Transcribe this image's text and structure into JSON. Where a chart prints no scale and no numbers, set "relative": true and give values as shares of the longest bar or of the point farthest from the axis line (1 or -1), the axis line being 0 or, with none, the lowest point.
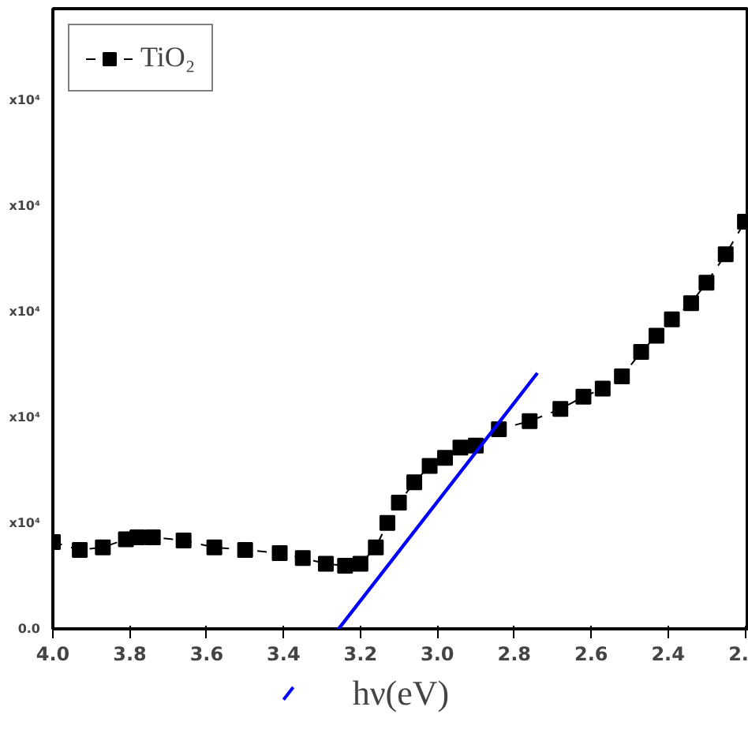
{
  "chart_data": {
    "type": "line",
    "relative": true,
    "xlabel": "hν(eV)",
    "xlim": [
      4.0,
      2.19
    ],
    "xticks": [
      {
        "value": 4.0,
        "label": "4.0"
      },
      3.8,
      3.6,
      3.4,
      3.2,
      {
        "value": 3.0,
        "label": "3.0"
      },
      2.8,
      2.6,
      2.4,
      {
        "value": 2.2,
        "label": "2."
      }
    ],
    "annotations": [
      "0.0",
      "x10⁴",
      "x10⁴",
      "x10⁴",
      "x10⁴",
      "x10⁴"
    ],
    "legend": "top left",
    "grid": false,
    "series": [
      {
        "name": "TiO₂",
        "color": "#000000",
        "marker": "square",
        "line_style": "dashed",
        "x": [
          4.0,
          3.93,
          3.87,
          3.81,
          3.78,
          3.74,
          3.66,
          3.58,
          3.5,
          3.41,
          3.35,
          3.29,
          3.24,
          3.2,
          3.16,
          3.13,
          3.1,
          3.06,
          3.02,
          2.98,
          2.94,
          2.9,
          2.84,
          2.76,
          2.68,
          2.62,
          2.57,
          2.52,
          2.47,
          2.43,
          2.39,
          2.34,
          2.3,
          2.25,
          2.2
        ],
        "values": [
          0.213,
          0.194,
          0.2,
          0.22,
          0.225,
          0.225,
          0.217,
          0.2,
          0.194,
          0.186,
          0.174,
          0.16,
          0.155,
          0.16,
          0.2,
          0.26,
          0.31,
          0.36,
          0.4,
          0.42,
          0.445,
          0.45,
          0.49,
          0.51,
          0.54,
          0.57,
          0.59,
          0.62,
          0.68,
          0.72,
          0.76,
          0.8,
          0.85,
          0.92,
          1.0
        ]
      },
      {
        "type": "line",
        "color": "#0000ff",
        "marker": "none",
        "line_style": "solid",
        "x": [
          2.74,
          3.4
        ],
        "values": [
          0.628,
          -0.174
        ]
      }
    ]
  }
}
